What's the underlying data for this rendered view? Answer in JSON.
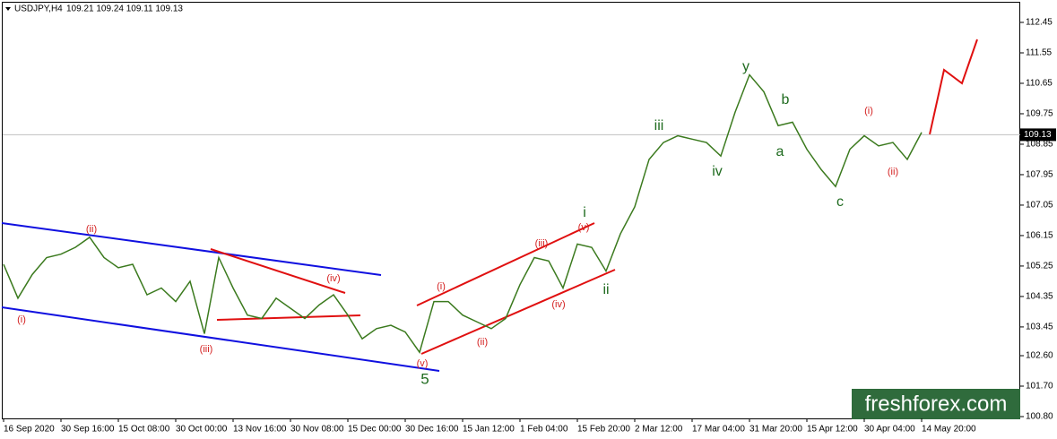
{
  "chart_data": {
    "type": "line",
    "header": {
      "symbol": "USDJPY,H4",
      "quotes": "109.21 109.24 109.11 109.13"
    },
    "categories": [
      "16 Sep 2020",
      null,
      null,
      null,
      "30 Sep 16:00",
      null,
      null,
      null,
      "15 Oct 08:00",
      null,
      null,
      null,
      "30 Oct 00:00",
      null,
      null,
      null,
      "13 Nov 16:00",
      null,
      null,
      null,
      "30 Nov 08:00",
      null,
      null,
      null,
      "15 Dec 00:00",
      null,
      null,
      null,
      "30 Dec 16:00",
      null,
      null,
      null,
      "15 Jan 12:00",
      null,
      null,
      null,
      "1 Feb 04:00",
      null,
      null,
      null,
      "15 Feb 20:00",
      null,
      null,
      null,
      "2 Mar 12:00",
      null,
      null,
      null,
      "17 Mar 04:00",
      null,
      null,
      null,
      "31 Mar 20:00",
      null,
      null,
      null,
      "15 Apr 12:00",
      null,
      null,
      null,
      "30 Apr 04:00",
      null,
      null,
      null,
      "14 May 20:00"
    ],
    "series": [
      {
        "color": "#3b7a1e",
        "values": [
          105.3,
          104.3,
          105.0,
          105.5,
          105.6,
          105.8,
          106.1,
          105.5,
          105.2,
          105.3,
          104.4,
          104.6,
          104.2,
          104.8,
          103.25,
          105.5,
          104.6,
          103.8,
          103.7,
          104.3,
          104.0,
          103.7,
          104.1,
          104.4,
          103.8,
          103.1,
          103.4,
          103.5,
          103.3,
          102.7,
          104.2,
          104.2,
          103.8,
          103.6,
          103.4,
          103.7,
          104.7,
          105.5,
          105.4,
          104.6,
          105.9,
          105.8,
          105.1,
          106.2,
          107.0,
          108.4,
          108.9,
          109.1,
          109.0,
          108.9,
          108.5,
          109.8,
          110.9,
          110.4,
          109.4,
          109.5,
          108.7,
          108.1,
          107.6,
          108.7,
          109.1,
          108.8,
          108.9,
          108.4,
          109.2
        ]
      }
    ],
    "ylim": [
      100.8,
      112.45
    ],
    "yticks": [
      {
        "value": 100.8,
        "label": "100.80"
      },
      {
        "value": 101.7,
        "label": "101.70"
      },
      {
        "value": 102.6,
        "label": "102.60"
      },
      103.45,
      104.35,
      105.25,
      106.15,
      107.05,
      107.95,
      108.85,
      109.75,
      110.65,
      111.55,
      112.45
    ],
    "current_price": 109.13,
    "annotations": [
      "(i)",
      "(ii)",
      "(iii)",
      "(iv)",
      "(v)",
      "5",
      "(i)",
      "(ii)",
      "(iii)",
      "(iv)",
      "(v)",
      "i",
      "ii",
      "iii",
      "iv",
      "y",
      "b",
      "a",
      "c",
      "(i)",
      "(ii)"
    ],
    "watermark": "freshforex.com"
  }
}
